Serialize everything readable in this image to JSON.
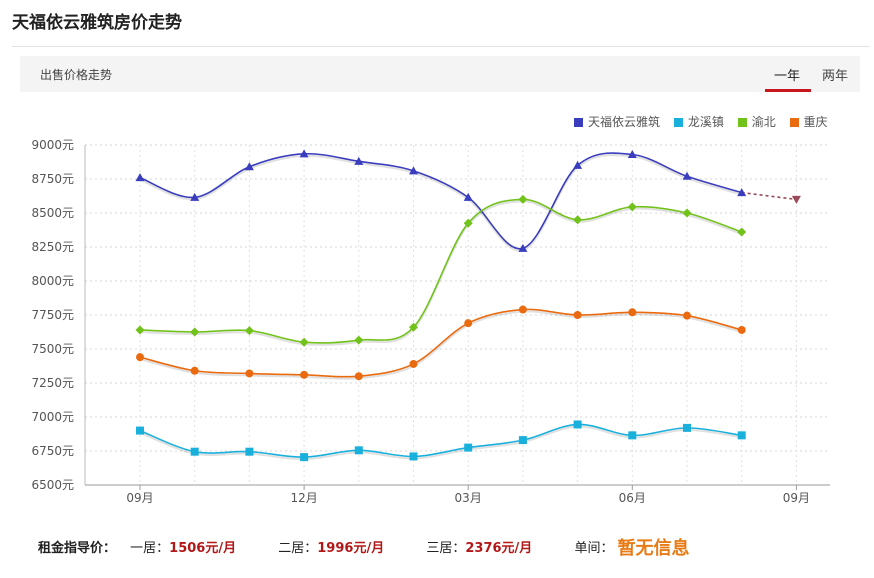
{
  "page": {
    "title": "天福依云雅筑房价走势"
  },
  "tabbar": {
    "label": "出售价格走势",
    "tabs": [
      {
        "label": "一年",
        "active": true
      },
      {
        "label": "两年",
        "active": false
      }
    ],
    "accent": "#c7161f"
  },
  "footer": {
    "label": "租金指导价：",
    "items": [
      {
        "label": "一居：",
        "value": "1506元/月"
      },
      {
        "label": "二居：",
        "value": "1996元/月"
      },
      {
        "label": "三居：",
        "value": "2376元/月"
      }
    ],
    "single_label": "单间：",
    "single_value": "暂无信息"
  },
  "chart_data": {
    "type": "line",
    "title": "",
    "xlabel": "",
    "ylabel": "",
    "ylim": [
      6500,
      9000
    ],
    "yticks": [
      "9000元",
      "8750元",
      "8500元",
      "8250元",
      "8000元",
      "7750元",
      "7500元",
      "7250元",
      "7000元",
      "6750元",
      "6500元"
    ],
    "xticks": [
      "09月",
      "12月",
      "03月",
      "06月",
      "09月"
    ],
    "x": [
      0,
      1,
      2,
      3,
      4,
      5,
      6,
      7,
      8,
      9,
      10,
      11,
      12
    ],
    "grid": true,
    "legend_position": "top-right",
    "series": [
      {
        "name": "天福依云雅筑",
        "color": "#3a3dbd",
        "marker": "triangle",
        "values": [
          8760,
          8615,
          8840,
          8935,
          8880,
          8810,
          8615,
          8240,
          8850,
          8930,
          8770,
          8650,
          null
        ],
        "forecast": {
          "from_index": 11,
          "to_index": 12,
          "values": [
            8650,
            8600
          ],
          "color": "#9b4a5a"
        }
      },
      {
        "name": "龙溪镇",
        "color": "#1ab0dc",
        "marker": "square",
        "values": [
          6900,
          6745,
          6745,
          6705,
          6755,
          6710,
          6775,
          6830,
          6945,
          6865,
          6920,
          6865,
          null
        ]
      },
      {
        "name": "渝北",
        "color": "#72c21c",
        "marker": "diamond",
        "values": [
          7640,
          7625,
          7635,
          7550,
          7565,
          7660,
          8425,
          8600,
          8450,
          8545,
          8500,
          8360,
          null
        ]
      },
      {
        "name": "重庆",
        "color": "#ea6a0f",
        "marker": "circle",
        "values": [
          7440,
          7340,
          7320,
          7310,
          7300,
          7390,
          7690,
          7790,
          7750,
          7770,
          7745,
          7640,
          null
        ]
      }
    ]
  }
}
